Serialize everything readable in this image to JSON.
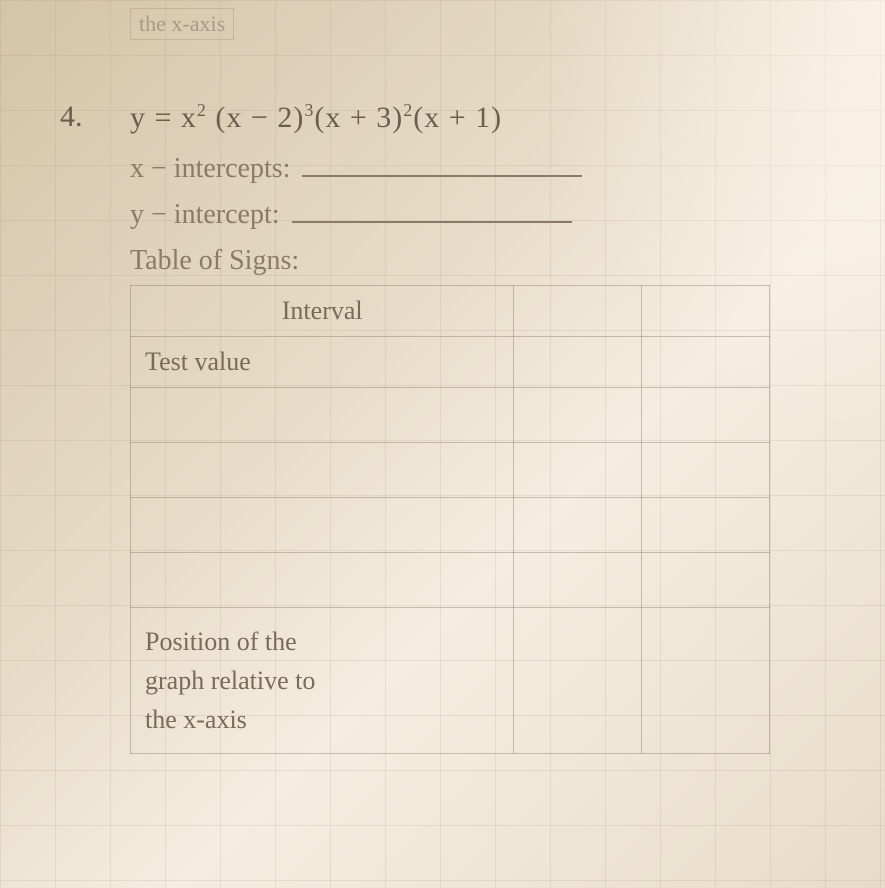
{
  "fragment": {
    "top_text": "the x-axis"
  },
  "problem": {
    "number": "4.",
    "equation_parts": {
      "prefix": "y = x",
      "exp1": "2",
      "part2": " (x − 2)",
      "exp2": "3",
      "part3": "(x + 3)",
      "exp3": "2",
      "part4": "(x + 1)"
    },
    "x_intercepts_label": "x − intercepts:",
    "y_intercept_label": "y − intercept:",
    "table_of_signs_label": "Table of Signs:",
    "table": {
      "interval_label": "Interval",
      "test_value_label": "Test value",
      "position_label_line1": "Position of the",
      "position_label_line2": "graph relative to",
      "position_label_line3": "the x-axis"
    }
  },
  "styling": {
    "background_gradient": [
      "#d4c4a8",
      "#e8dcc8",
      "#f5ede0"
    ],
    "text_color": "#6b5d4f",
    "faded_text_color": "#8a7a68",
    "grid_line_color": "rgba(150,130,110,0.15)",
    "grid_cell_size": 55,
    "table_border_color": "rgba(130,115,95,0.4)",
    "body_font_size": 28,
    "equation_font_size": 30
  }
}
